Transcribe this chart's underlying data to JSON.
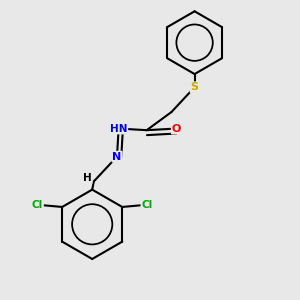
{
  "background_color": "#e8e8e8",
  "bond_color": "#000000",
  "atom_colors": {
    "S": "#ccaa00",
    "O": "#ff0000",
    "N": "#0000ff",
    "Cl": "#00aa00",
    "H_imine": "#000000",
    "C": "#000000"
  },
  "figsize": [
    3.0,
    3.0
  ],
  "dpi": 100
}
